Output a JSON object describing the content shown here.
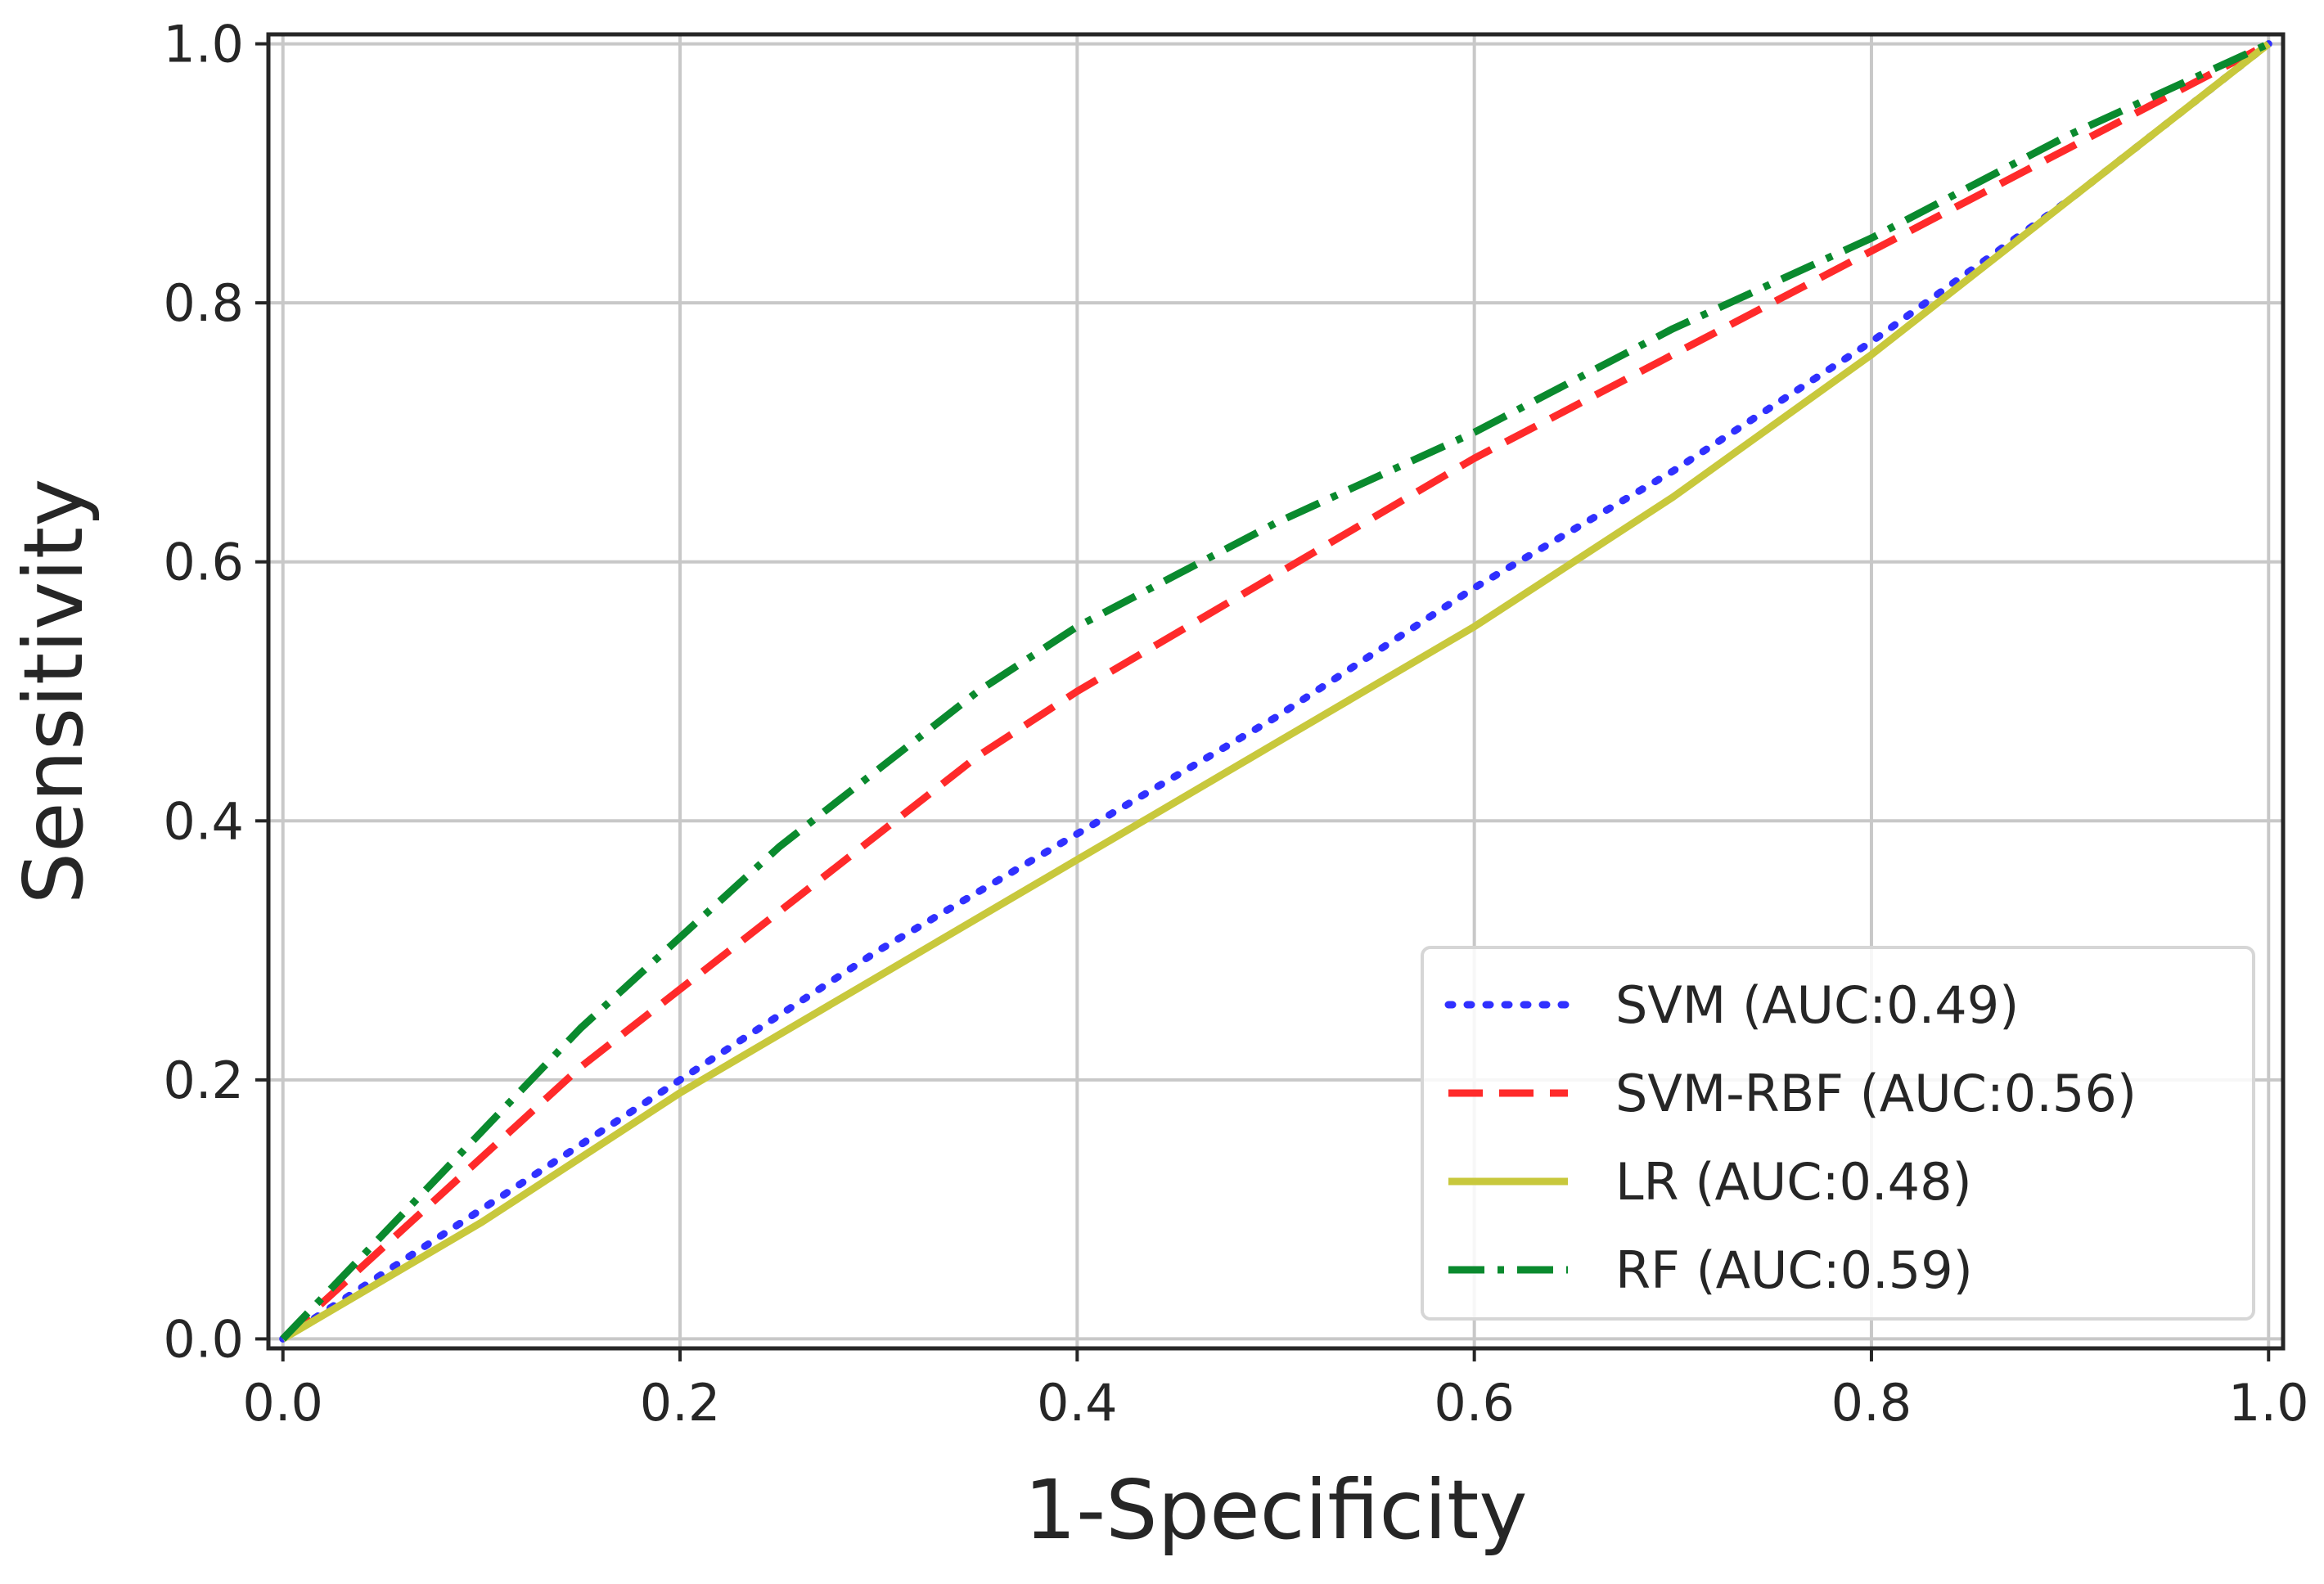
{
  "chart_data": {
    "type": "line",
    "title": "",
    "xlabel": "1-Specificity",
    "ylabel": "Sensitivity",
    "xlim": [
      0.0,
      1.0
    ],
    "ylim": [
      0.0,
      1.0
    ],
    "grid": true,
    "xticks": [
      "0.0",
      "0.2",
      "0.4",
      "0.6",
      "0.8",
      "1.0"
    ],
    "yticks": [
      "0.0",
      "0.2",
      "0.4",
      "0.6",
      "0.8",
      "1.0"
    ],
    "legend_position": "bottom-right",
    "series": [
      {
        "name": "SVM (AUC:0.49)",
        "color": "#3030ff",
        "style": "dotted",
        "x": [
          0.0,
          0.1,
          0.2,
          0.3,
          0.4,
          0.5,
          0.6,
          0.7,
          0.8,
          0.9,
          1.0
        ],
        "y": [
          0.0,
          0.1,
          0.2,
          0.3,
          0.39,
          0.48,
          0.58,
          0.67,
          0.77,
          0.88,
          1.0
        ]
      },
      {
        "name": "SVM-RBF (AUC:0.56)",
        "color": "#ff2a2a",
        "style": "dashed",
        "x": [
          0.0,
          0.05,
          0.1,
          0.15,
          0.2,
          0.25,
          0.3,
          0.35,
          0.4,
          0.5,
          0.6,
          0.7,
          0.8,
          0.9,
          1.0
        ],
        "y": [
          0.0,
          0.07,
          0.14,
          0.21,
          0.27,
          0.33,
          0.39,
          0.45,
          0.5,
          0.59,
          0.68,
          0.76,
          0.84,
          0.92,
          1.0
        ]
      },
      {
        "name": "LR (AUC:0.48)",
        "color": "#c8c83c",
        "style": "solid",
        "x": [
          0.0,
          0.1,
          0.2,
          0.3,
          0.4,
          0.5,
          0.6,
          0.7,
          0.8,
          0.9,
          1.0
        ],
        "y": [
          0.0,
          0.09,
          0.19,
          0.28,
          0.37,
          0.46,
          0.55,
          0.65,
          0.76,
          0.88,
          1.0
        ]
      },
      {
        "name": "RF (AUC:0.59)",
        "color": "#0a8a2e",
        "style": "dashdot",
        "x": [
          0.0,
          0.05,
          0.1,
          0.15,
          0.2,
          0.25,
          0.3,
          0.35,
          0.4,
          0.45,
          0.5,
          0.6,
          0.7,
          0.8,
          0.9,
          1.0
        ],
        "y": [
          0.0,
          0.08,
          0.16,
          0.24,
          0.31,
          0.38,
          0.44,
          0.5,
          0.55,
          0.59,
          0.63,
          0.7,
          0.78,
          0.85,
          0.93,
          1.0
        ]
      }
    ]
  }
}
